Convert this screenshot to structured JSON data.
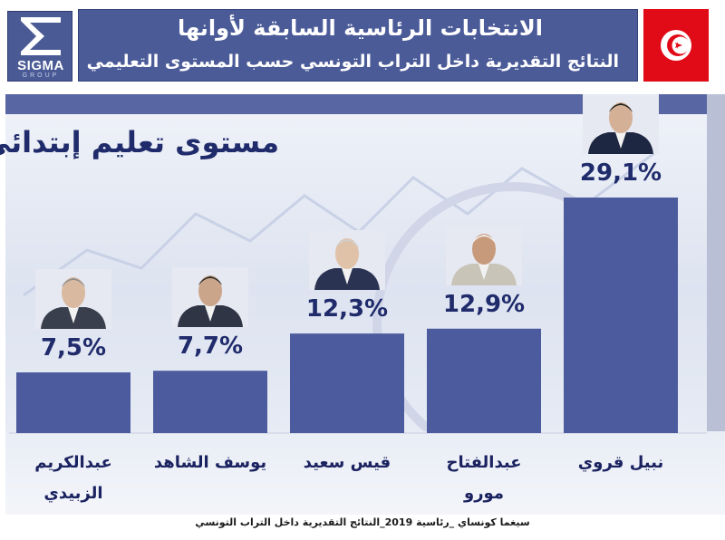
{
  "header": {
    "title": "الانتخابات الرئاسية السابقة لأوانها",
    "subtitle": "النتائج التقديرية داخل التراب التونسي حسب المستوى التعليمي",
    "logo_text": "SIGMA",
    "logo_subtext": "GROUP"
  },
  "panel_title": "مستوى تعليم إبتدائي",
  "footer": "سيغما كونساي _رئاسية 2019_النتائج التقديرية داخل التراب التونسي",
  "colors": {
    "bar": "#4b5b9d",
    "header_bg": "#4b5b98",
    "flag_red": "#e10b17",
    "text_dark_blue": "#1f2b6b"
  },
  "icons": [
    "sigma-logo-icon",
    "tunisia-flag-icon",
    "candidate-photo-icon"
  ],
  "chart_data": {
    "type": "bar",
    "title": "مستوى تعليم إبتدائي",
    "xlabel": "",
    "ylabel": "",
    "ylim": [
      0,
      30
    ],
    "categories": [
      "عبدالكريم الزبيدي",
      "يوسف الشاهد",
      "قيس سعيد",
      "عبدالفتاح مورو",
      "نبيل قروي"
    ],
    "values": [
      7.5,
      7.7,
      12.3,
      12.9,
      29.1
    ],
    "value_labels": [
      "7,5%",
      "7,7%",
      "12,3%",
      "12,9%",
      "29,1%"
    ],
    "grid": false,
    "legend": "none"
  }
}
